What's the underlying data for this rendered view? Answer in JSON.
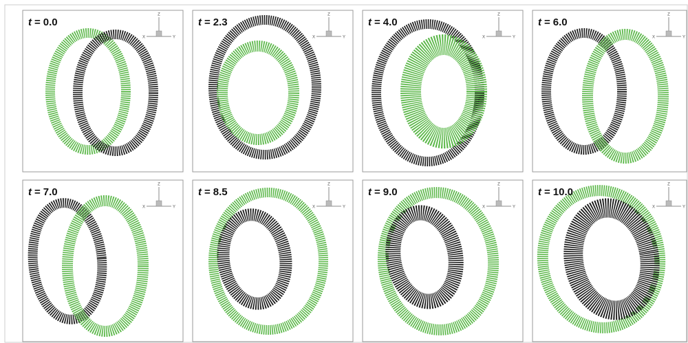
{
  "time_label": {
    "symbol": "t",
    "sign": "="
  },
  "axes": {
    "z": "Z",
    "x": "X",
    "y": "Y"
  },
  "panels": [
    {
      "time": "0.0"
    },
    {
      "time": "2.3"
    },
    {
      "time": "4.0"
    },
    {
      "time": "6.0"
    },
    {
      "time": "7.0"
    },
    {
      "time": "8.5"
    },
    {
      "time": "9.0"
    },
    {
      "time": "10.0"
    }
  ]
}
